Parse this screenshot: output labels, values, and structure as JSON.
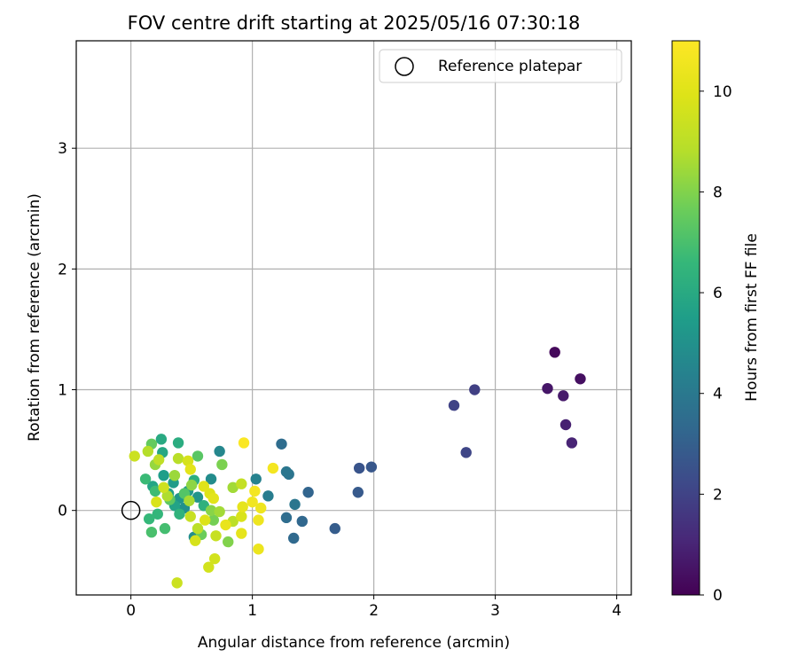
{
  "chart_data": {
    "type": "scatter",
    "title": "FOV centre drift starting at 2025/05/16 07:30:18",
    "xlabel": "Angular distance from reference (arcmin)",
    "ylabel": "Rotation from reference (arcmin)",
    "xlim": [
      -0.45,
      4.12
    ],
    "ylim": [
      -0.7,
      3.89
    ],
    "xticks": [
      0,
      1,
      2,
      3,
      4
    ],
    "yticks": [
      0,
      1,
      2,
      3
    ],
    "grid": true,
    "legend": {
      "location": "upper right",
      "entries": [
        "Reference platepar"
      ]
    },
    "colorbar": {
      "label": "Hours from first FF file",
      "colormap": "viridis",
      "range": [
        0,
        11
      ],
      "ticks": [
        0,
        2,
        4,
        6,
        8,
        10
      ]
    },
    "reference": {
      "x": 0,
      "y": 0,
      "label": "Reference platepar"
    },
    "series": [
      {
        "points": [
          {
            "x": 3.49,
            "y": 1.31,
            "c": 0.2
          },
          {
            "x": 3.7,
            "y": 1.09,
            "c": 0.4
          },
          {
            "x": 3.43,
            "y": 1.01,
            "c": 0.6
          },
          {
            "x": 3.56,
            "y": 0.95,
            "c": 0.7
          },
          {
            "x": 3.58,
            "y": 0.71,
            "c": 0.9
          },
          {
            "x": 3.63,
            "y": 0.56,
            "c": 1.0
          },
          {
            "x": 2.83,
            "y": 1.0,
            "c": 1.9
          },
          {
            "x": 2.66,
            "y": 0.87,
            "c": 2.0
          },
          {
            "x": 2.76,
            "y": 0.48,
            "c": 2.1
          },
          {
            "x": 1.88,
            "y": 0.35,
            "c": 2.6
          },
          {
            "x": 1.98,
            "y": 0.36,
            "c": 2.7
          },
          {
            "x": 1.87,
            "y": 0.15,
            "c": 2.8
          },
          {
            "x": 1.68,
            "y": -0.15,
            "c": 2.9
          },
          {
            "x": 1.46,
            "y": 0.15,
            "c": 3.2
          },
          {
            "x": 1.41,
            "y": -0.09,
            "c": 3.3
          },
          {
            "x": 1.34,
            "y": -0.23,
            "c": 3.4
          },
          {
            "x": 1.28,
            "y": -0.06,
            "c": 3.5
          },
          {
            "x": 1.24,
            "y": 0.55,
            "c": 3.5
          },
          {
            "x": 1.3,
            "y": 0.3,
            "c": 3.8
          },
          {
            "x": 1.28,
            "y": 0.32,
            "c": 3.9
          },
          {
            "x": 1.35,
            "y": 0.05,
            "c": 3.9
          },
          {
            "x": 1.13,
            "y": 0.12,
            "c": 4.2
          },
          {
            "x": 1.03,
            "y": 0.26,
            "c": 4.4
          },
          {
            "x": 0.73,
            "y": 0.49,
            "c": 4.6
          },
          {
            "x": 0.66,
            "y": 0.26,
            "c": 4.8
          },
          {
            "x": 0.52,
            "y": -0.22,
            "c": 4.9
          },
          {
            "x": 0.44,
            "y": 0.02,
            "c": 5.0
          },
          {
            "x": 0.55,
            "y": 0.11,
            "c": 5.1
          },
          {
            "x": 0.4,
            "y": 0.1,
            "c": 5.2
          },
          {
            "x": 0.47,
            "y": 0.16,
            "c": 5.3
          },
          {
            "x": 0.35,
            "y": 0.23,
            "c": 5.4
          },
          {
            "x": 0.27,
            "y": 0.29,
            "c": 5.5
          },
          {
            "x": 0.31,
            "y": 0.14,
            "c": 5.6
          },
          {
            "x": 0.36,
            "y": 0.04,
            "c": 5.7
          },
          {
            "x": 0.18,
            "y": 0.2,
            "c": 5.8
          },
          {
            "x": 0.26,
            "y": 0.48,
            "c": 5.9
          },
          {
            "x": 0.25,
            "y": 0.59,
            "c": 6.0
          },
          {
            "x": 0.39,
            "y": 0.56,
            "c": 6.1
          },
          {
            "x": 0.52,
            "y": 0.25,
            "c": 6.2
          },
          {
            "x": 0.6,
            "y": 0.04,
            "c": 6.3
          },
          {
            "x": 0.4,
            "y": -0.03,
            "c": 6.4
          },
          {
            "x": 0.22,
            "y": -0.03,
            "c": 6.5
          },
          {
            "x": 0.15,
            "y": -0.07,
            "c": 6.6
          },
          {
            "x": 0.12,
            "y": 0.26,
            "c": 6.7
          },
          {
            "x": 0.2,
            "y": 0.16,
            "c": 6.8
          },
          {
            "x": 0.28,
            "y": -0.15,
            "c": 6.9
          },
          {
            "x": 0.17,
            "y": -0.18,
            "c": 7.0
          },
          {
            "x": 0.44,
            "y": 0.14,
            "c": 7.2
          },
          {
            "x": 0.55,
            "y": 0.45,
            "c": 7.3
          },
          {
            "x": 0.32,
            "y": 0.09,
            "c": 7.4
          },
          {
            "x": 0.17,
            "y": 0.55,
            "c": 7.5
          },
          {
            "x": 0.58,
            "y": -0.2,
            "c": 7.6
          },
          {
            "x": 0.68,
            "y": -0.08,
            "c": 7.8
          },
          {
            "x": 0.75,
            "y": 0.38,
            "c": 7.9
          },
          {
            "x": 0.8,
            "y": -0.26,
            "c": 8.0
          },
          {
            "x": 0.66,
            "y": 0.0,
            "c": 8.1
          },
          {
            "x": 0.5,
            "y": 0.21,
            "c": 8.2
          },
          {
            "x": 0.2,
            "y": 0.38,
            "c": 8.3
          },
          {
            "x": 0.36,
            "y": 0.29,
            "c": 8.4
          },
          {
            "x": 0.84,
            "y": 0.19,
            "c": 8.5
          },
          {
            "x": 0.73,
            "y": -0.01,
            "c": 8.5
          },
          {
            "x": 0.48,
            "y": 0.08,
            "c": 8.6
          },
          {
            "x": 0.3,
            "y": 0.12,
            "c": 8.7
          },
          {
            "x": 0.14,
            "y": 0.49,
            "c": 8.8
          },
          {
            "x": 0.39,
            "y": 0.43,
            "c": 8.9
          },
          {
            "x": 0.84,
            "y": -0.09,
            "c": 9.0
          },
          {
            "x": 0.55,
            "y": -0.15,
            "c": 9.0
          },
          {
            "x": 0.23,
            "y": 0.42,
            "c": 9.1
          },
          {
            "x": 0.91,
            "y": 0.22,
            "c": 9.2
          },
          {
            "x": 0.49,
            "y": -0.05,
            "c": 9.3
          },
          {
            "x": 0.7,
            "y": -0.21,
            "c": 9.3
          },
          {
            "x": 0.03,
            "y": 0.45,
            "c": 9.4
          },
          {
            "x": 0.38,
            "y": -0.6,
            "c": 9.4
          },
          {
            "x": 0.27,
            "y": 0.19,
            "c": 9.5
          },
          {
            "x": 0.69,
            "y": -0.4,
            "c": 9.6
          },
          {
            "x": 0.64,
            "y": -0.47,
            "c": 9.6
          },
          {
            "x": 0.53,
            "y": -0.25,
            "c": 9.7
          },
          {
            "x": 0.47,
            "y": 0.41,
            "c": 9.7
          },
          {
            "x": 0.21,
            "y": 0.07,
            "c": 9.8
          },
          {
            "x": 0.91,
            "y": -0.05,
            "c": 9.8
          },
          {
            "x": 0.61,
            "y": -0.08,
            "c": 9.9
          },
          {
            "x": 0.65,
            "y": 0.14,
            "c": 9.9
          },
          {
            "x": 0.6,
            "y": 0.2,
            "c": 10.0
          },
          {
            "x": 0.49,
            "y": 0.34,
            "c": 10.1
          },
          {
            "x": 0.68,
            "y": 0.1,
            "c": 10.1
          },
          {
            "x": 0.92,
            "y": 0.03,
            "c": 10.2
          },
          {
            "x": 0.91,
            "y": -0.19,
            "c": 10.2
          },
          {
            "x": 0.78,
            "y": -0.12,
            "c": 10.3
          },
          {
            "x": 1.05,
            "y": -0.32,
            "c": 10.4
          },
          {
            "x": 1.05,
            "y": -0.08,
            "c": 10.5
          },
          {
            "x": 1.07,
            "y": 0.02,
            "c": 10.5
          },
          {
            "x": 1.0,
            "y": 0.07,
            "c": 10.6
          },
          {
            "x": 1.02,
            "y": 0.16,
            "c": 10.7
          },
          {
            "x": 1.17,
            "y": 0.35,
            "c": 10.7
          },
          {
            "x": 0.93,
            "y": 0.56,
            "c": 10.9
          }
        ]
      }
    ]
  }
}
